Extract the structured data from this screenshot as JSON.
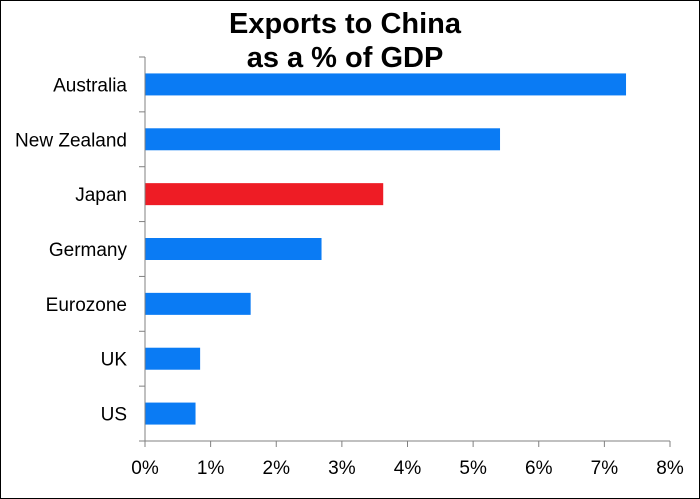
{
  "chart_data": {
    "type": "bar",
    "orientation": "horizontal",
    "title_lines": [
      "Exports to China",
      "as a % of GDP"
    ],
    "categories": [
      "Australia",
      "New Zealand",
      "Japan",
      "Germany",
      "Eurozone",
      "UK",
      "US"
    ],
    "values": [
      7.33,
      5.41,
      3.63,
      2.69,
      1.61,
      0.84,
      0.77
    ],
    "value_unit": "%",
    "xlim": [
      0,
      8
    ],
    "x_ticks": [
      "0%",
      "1%",
      "2%",
      "3%",
      "4%",
      "5%",
      "6%",
      "7%",
      "8%"
    ],
    "xlabel": "",
    "ylabel": "",
    "grid": false,
    "legend": "none",
    "colors": {
      "default_bar": "#0a7bf4",
      "highlight_bar": "#ee1c25",
      "axis": "#808080"
    },
    "highlight_category": "Japan"
  }
}
